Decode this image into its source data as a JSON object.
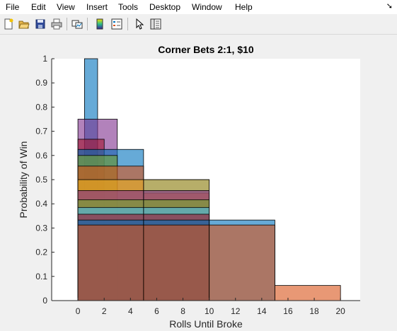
{
  "menu": {
    "file": "File",
    "edit": "Edit",
    "view": "View",
    "insert": "Insert",
    "tools": "Tools",
    "desktop": "Desktop",
    "window": "Window",
    "help": "Help",
    "dock_glyph": "➘"
  },
  "toolbar": {
    "icons": [
      "new-figure-icon",
      "open-file-icon",
      "save-icon",
      "print-icon",
      "link-plot-icon",
      "colorbar-icon",
      "legend-icon",
      "edit-plot-arrow-icon",
      "property-inspector-icon"
    ]
  },
  "chart_data": {
    "type": "histogram",
    "title": "Corner Bets 2:1, $10",
    "xlabel": "Rolls Until Broke",
    "ylabel": "Probability of Win",
    "xlim": [
      -2,
      21.5
    ],
    "ylim": [
      0,
      1
    ],
    "xticks": [
      "0",
      "2",
      "4",
      "6",
      "8",
      "10",
      "12",
      "14",
      "16",
      "18",
      "20"
    ],
    "yticks": [
      "0",
      "0.1",
      "0.2",
      "0.3",
      "0.4",
      "0.5",
      "0.6",
      "0.7",
      "0.8",
      "0.9",
      "1"
    ],
    "grid": false,
    "series": [
      {
        "color": "#0072bd",
        "bins": [
          [
            0.5,
            1.5,
            1.0
          ]
        ]
      },
      {
        "color": "#7e2f8e",
        "bins": [
          [
            0,
            3,
            0.75
          ]
        ]
      },
      {
        "color": "#a2142f",
        "bins": [
          [
            0,
            2,
            0.667
          ]
        ]
      },
      {
        "color": "#0072bd",
        "bins": [
          [
            0,
            5,
            0.625
          ],
          [
            5,
            10,
            0.5
          ]
        ]
      },
      {
        "color": "#77ac30",
        "bins": [
          [
            0,
            3,
            0.6
          ]
        ]
      },
      {
        "color": "#d95319",
        "bins": [
          [
            0,
            5,
            0.556
          ],
          [
            5,
            10,
            0.444
          ]
        ]
      },
      {
        "color": "#edb120",
        "bins": [
          [
            0,
            5,
            0.5
          ],
          [
            5,
            10,
            0.5
          ]
        ]
      },
      {
        "color": "#7e2f8e",
        "bins": [
          [
            0,
            5,
            0.455
          ],
          [
            5,
            10,
            0.455
          ]
        ]
      },
      {
        "color": "#77ac30",
        "bins": [
          [
            0,
            5,
            0.417
          ],
          [
            5,
            10,
            0.417
          ]
        ]
      },
      {
        "color": "#4dbeee",
        "bins": [
          [
            0,
            5,
            0.385
          ],
          [
            5,
            10,
            0.385
          ]
        ]
      },
      {
        "color": "#a2142f",
        "bins": [
          [
            0,
            5,
            0.357
          ],
          [
            5,
            10,
            0.357
          ]
        ]
      },
      {
        "color": "#0072bd",
        "bins": [
          [
            0,
            5,
            0.333
          ],
          [
            5,
            10,
            0.333
          ],
          [
            10,
            15,
            0.333
          ]
        ]
      },
      {
        "color": "#d95319",
        "bins": [
          [
            0,
            5,
            0.3125
          ],
          [
            5,
            10,
            0.3125
          ],
          [
            10,
            15,
            0.3125
          ],
          [
            15,
            20,
            0.0625
          ]
        ]
      }
    ]
  }
}
